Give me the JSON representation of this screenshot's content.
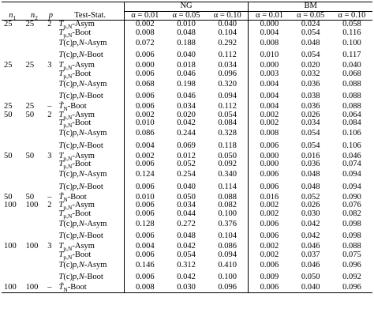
{
  "table": {
    "groups": [
      "NG",
      "BM"
    ],
    "columns": [
      {
        "base": "n",
        "sub": "1"
      },
      {
        "base": "n",
        "sub": "2"
      },
      {
        "base": "p"
      },
      "Test-Stat.",
      "α = 0.01",
      "α = 0.05",
      "α = 0.10",
      "α = 0.01",
      "α = 0.05",
      "α = 0.10"
    ],
    "rows": [
      [
        "25",
        "25",
        "2",
        {
          "base": "T",
          "sub": "p,N",
          "suffix": "-Asym"
        },
        "0.002",
        "0.010",
        "0.040",
        "0.000",
        "0.024",
        "0.058"
      ],
      [
        null,
        null,
        null,
        {
          "base": "T",
          "sub": "p,N",
          "suffix": "-Boot"
        },
        "0.008",
        "0.048",
        "0.104",
        "0.004",
        "0.054",
        "0.116"
      ],
      [
        null,
        null,
        null,
        {
          "base": "T",
          "sup": "(c)",
          "sub": "p,N",
          "suffix": "-Asym"
        },
        "0.072",
        "0.188",
        "0.292",
        "0.008",
        "0.048",
        "0.100"
      ],
      [
        null,
        null,
        null,
        {
          "base": "T",
          "sup": "(c)",
          "sub": "p,N",
          "suffix": "-Boot"
        },
        "0.006",
        "0.040",
        "0.112",
        "0.010",
        "0.054",
        "0.117"
      ],
      [
        "25",
        "25",
        "3",
        {
          "base": "T",
          "sub": "p,N",
          "suffix": "-Asym"
        },
        "0.000",
        "0.018",
        "0.034",
        "0.000",
        "0.020",
        "0.040"
      ],
      [
        null,
        null,
        null,
        {
          "base": "T",
          "sub": "p,N",
          "suffix": "-Boot"
        },
        "0.006",
        "0.046",
        "0.096",
        "0.003",
        "0.032",
        "0.068"
      ],
      [
        null,
        null,
        null,
        {
          "base": "T",
          "sup": "(c)",
          "sub": "p,N",
          "suffix": "-Asym"
        },
        "0.068",
        "0.198",
        "0.320",
        "0.004",
        "0.036",
        "0.088"
      ],
      [
        null,
        null,
        null,
        {
          "base": "T",
          "sup": "(c)",
          "sub": "p,N",
          "suffix": "-Boot"
        },
        "0.006",
        "0.046",
        "0.094",
        "0.004",
        "0.038",
        "0.088"
      ],
      [
        "25",
        "25",
        "–",
        {
          "base": "T̃",
          "sub": "N",
          "suffix": "-Boot"
        },
        "0.006",
        "0.034",
        "0.112",
        "0.004",
        "0.036",
        "0.088"
      ],
      [
        "50",
        "50",
        "2",
        {
          "base": "T",
          "sub": "p,N",
          "suffix": "-Asym"
        },
        "0.002",
        "0.020",
        "0.054",
        "0.002",
        "0.026",
        "0.064"
      ],
      [
        null,
        null,
        null,
        {
          "base": "T",
          "sub": "p,N",
          "suffix": "-Boot"
        },
        "0.010",
        "0.042",
        "0.084",
        "0.002",
        "0.034",
        "0.084"
      ],
      [
        null,
        null,
        null,
        {
          "base": "T",
          "sup": "(c)",
          "sub": "p,N",
          "suffix": "-Asym"
        },
        "0.086",
        "0.244",
        "0.328",
        "0.008",
        "0.054",
        "0.106"
      ],
      [
        null,
        null,
        null,
        {
          "base": "T",
          "sup": "(c)",
          "sub": "p,N",
          "suffix": "-Boot"
        },
        "0.004",
        "0.069",
        "0.118",
        "0.006",
        "0.054",
        "0.106"
      ],
      [
        "50",
        "50",
        "3",
        {
          "base": "T",
          "sub": "p,N",
          "suffix": "-Asym"
        },
        "0.002",
        "0.012",
        "0.050",
        "0.000",
        "0.016",
        "0.046"
      ],
      [
        null,
        null,
        null,
        {
          "base": "T",
          "sub": "p,N",
          "suffix": "-Boot"
        },
        "0.006",
        "0.052",
        "0.092",
        "0.000",
        "0.036",
        "0.074"
      ],
      [
        null,
        null,
        null,
        {
          "base": "T",
          "sup": "(c)",
          "sub": "p,N",
          "suffix": "-Asym"
        },
        "0.124",
        "0.254",
        "0.340",
        "0.006",
        "0.048",
        "0.094"
      ],
      [
        null,
        null,
        null,
        {
          "base": "T",
          "sup": "(c)",
          "sub": "p,N",
          "suffix": "-Boot"
        },
        "0.006",
        "0.040",
        "0.114",
        "0.006",
        "0.048",
        "0.094"
      ],
      [
        "50",
        "50",
        "–",
        {
          "base": "T̃",
          "sub": "N",
          "suffix": "-Boot"
        },
        "0.010",
        "0.050",
        "0.088",
        "0.016",
        "0.052",
        "0.090"
      ],
      [
        "100",
        "100",
        "2",
        {
          "base": "T",
          "sub": "p,N",
          "suffix": "-Asym"
        },
        "0.006",
        "0.034",
        "0.082",
        "0.002",
        "0.026",
        "0.076"
      ],
      [
        null,
        null,
        null,
        {
          "base": "T",
          "sub": "p,N",
          "suffix": "-Boot"
        },
        "0.006",
        "0.044",
        "0.100",
        "0.002",
        "0.030",
        "0.082"
      ],
      [
        null,
        null,
        null,
        {
          "base": "T",
          "sup": "(c)",
          "sub": "p,N",
          "suffix": "-Asym"
        },
        "0.128",
        "0.272",
        "0.376",
        "0.006",
        "0.042",
        "0.098"
      ],
      [
        null,
        null,
        null,
        {
          "base": "T",
          "sup": "(c)",
          "sub": "p,N",
          "suffix": "-Boot"
        },
        "0.006",
        "0.048",
        "0.104",
        "0.006",
        "0.042",
        "0.098"
      ],
      [
        "100",
        "100",
        "3",
        {
          "base": "T",
          "sub": "p,N",
          "suffix": "-Asym"
        },
        "0.004",
        "0.042",
        "0.086",
        "0.002",
        "0.046",
        "0.088"
      ],
      [
        null,
        null,
        null,
        {
          "base": "T",
          "sub": "p,N",
          "suffix": "-Boot"
        },
        "0.006",
        "0.054",
        "0.094",
        "0.002",
        "0.037",
        "0.075"
      ],
      [
        null,
        null,
        null,
        {
          "base": "T",
          "sup": "(c)",
          "sub": "p,N",
          "suffix": "-Asym"
        },
        "0.146",
        "0.312",
        "0.410",
        "0.006",
        "0.046",
        "0.096"
      ],
      [
        null,
        null,
        null,
        {
          "base": "T",
          "sup": "(c)",
          "sub": "p,N",
          "suffix": "-Boot"
        },
        "0.006",
        "0.042",
        "0.100",
        "0.009",
        "0.050",
        "0.092"
      ],
      [
        "100",
        "100",
        "–",
        {
          "base": "T̃",
          "sub": "N",
          "suffix": "-Boot"
        },
        "0.008",
        "0.030",
        "0.096",
        "0.006",
        "0.040",
        "0.096"
      ]
    ]
  }
}
